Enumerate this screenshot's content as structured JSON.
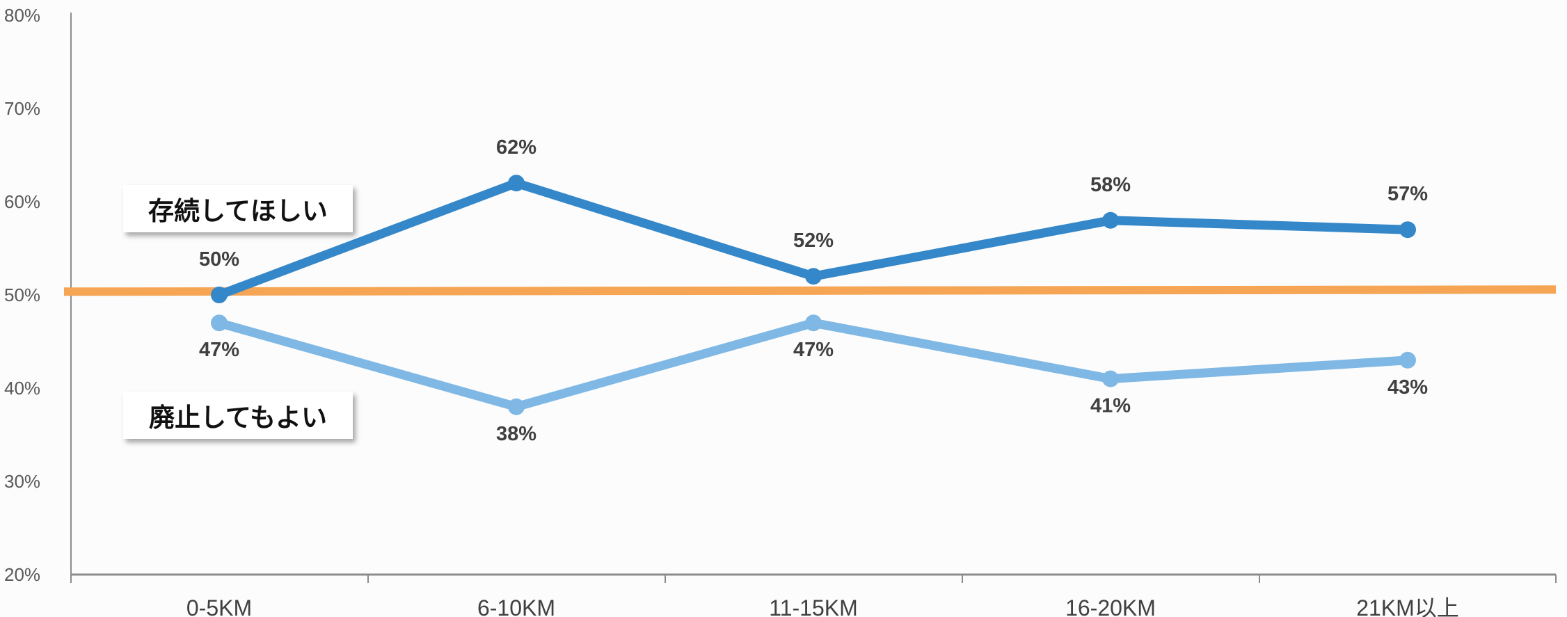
{
  "chart_data": {
    "type": "line",
    "categories": [
      "0-5KM",
      "6-10KM",
      "11-15KM",
      "16-20KM",
      "21KM以上"
    ],
    "ylim": [
      20,
      80
    ],
    "yticks": [
      20,
      30,
      40,
      50,
      60,
      70,
      80
    ],
    "ytick_labels": [
      "20%",
      "30%",
      "40%",
      "50%",
      "60%",
      "70%",
      "80%"
    ],
    "grid": false,
    "series": [
      {
        "name": "存続してほしい",
        "values": [
          50,
          62,
          52,
          58,
          57
        ],
        "labels": [
          "50%",
          "62%",
          "52%",
          "58%",
          "57%"
        ],
        "color": "#3487c8"
      },
      {
        "name": "廃止してもよい",
        "values": [
          47,
          38,
          47,
          41,
          43
        ],
        "labels": [
          "47%",
          "38%",
          "47%",
          "41%",
          "43%"
        ],
        "color": "#7fb8e4"
      }
    ],
    "reference_line": {
      "value": 50.5,
      "color": "#f5a553"
    },
    "axis_color": "#8c8c8c"
  }
}
